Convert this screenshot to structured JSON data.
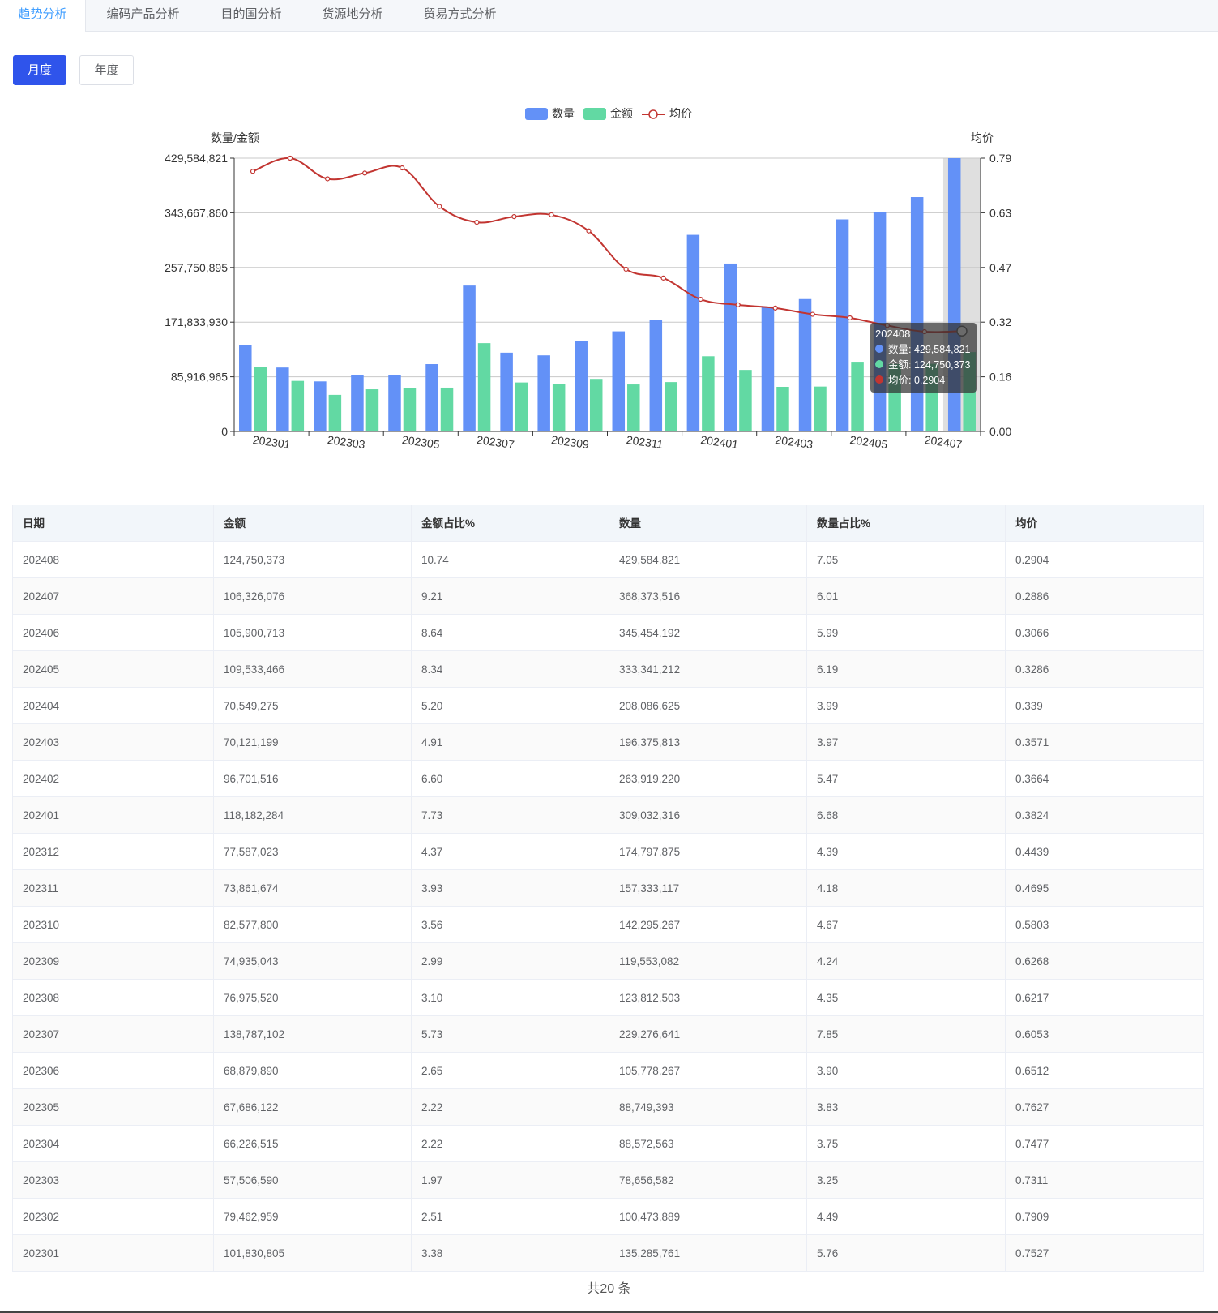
{
  "tabs": [
    {
      "label": "趋势分析",
      "active": true
    },
    {
      "label": "编码产品分析",
      "active": false
    },
    {
      "label": "目的国分析",
      "active": false
    },
    {
      "label": "货源地分析",
      "active": false
    },
    {
      "label": "贸易方式分析",
      "active": false
    }
  ],
  "period_buttons": {
    "monthly": "月度",
    "yearly": "年度",
    "selected": "月度"
  },
  "chart_data": {
    "type": "bar",
    "categories": [
      "202301",
      "202302",
      "202303",
      "202304",
      "202305",
      "202306",
      "202307",
      "202308",
      "202309",
      "202310",
      "202311",
      "202312",
      "202401",
      "202402",
      "202403",
      "202404",
      "202405",
      "202406",
      "202407",
      "202408"
    ],
    "x_tick_labels": [
      "202301",
      "202303",
      "202305",
      "202307",
      "202309",
      "202311",
      "202401",
      "202403",
      "202405",
      "202407"
    ],
    "series": [
      {
        "name": "数量",
        "kind": "bar",
        "color": "#6391f7",
        "values": [
          135285761,
          100473889,
          78656582,
          88572563,
          88749393,
          105778267,
          229276641,
          123812503,
          119553082,
          142295267,
          157333117,
          174797875,
          309032316,
          263919220,
          196375813,
          208086625,
          333341212,
          345454192,
          368373516,
          429584821
        ]
      },
      {
        "name": "金额",
        "kind": "bar",
        "color": "#62d9a3",
        "values": [
          101830805,
          79462959,
          57506590,
          66226515,
          67686122,
          68879890,
          138787102,
          76975520,
          74935043,
          82577800,
          73861674,
          77587023,
          118182284,
          96701516,
          70121199,
          70549275,
          109533466,
          105900713,
          106326076,
          124750373
        ]
      },
      {
        "name": "均价",
        "kind": "line",
        "color": "#c23531",
        "values": [
          0.7527,
          0.7909,
          0.7311,
          0.7477,
          0.7627,
          0.6512,
          0.6053,
          0.6217,
          0.6268,
          0.5803,
          0.4695,
          0.4439,
          0.3824,
          0.3664,
          0.3571,
          0.339,
          0.3286,
          0.3066,
          0.2886,
          0.2904
        ]
      }
    ],
    "y_left": {
      "label": "数量/金额",
      "ticks": [
        "0",
        "85,916,965",
        "171,833,930",
        "257,750,895",
        "343,667,860",
        "429,584,821"
      ],
      "max": 429584821
    },
    "y_right": {
      "label": "均价",
      "ticks": [
        "0.00",
        "0.16",
        "0.32",
        "0.47",
        "0.63",
        "0.79"
      ],
      "max": 0.7909
    },
    "legend_position": "top-center",
    "grid": true,
    "highlighted_category": "202408",
    "tooltip": {
      "title": "202408",
      "lines": [
        "数量: 429,584,821",
        "金额: 124,750,373",
        "均价: 0.2904"
      ]
    }
  },
  "table": {
    "headers": [
      "日期",
      "金额",
      "金额占比%",
      "数量",
      "数量占比%",
      "均价"
    ],
    "rows": [
      [
        "202408",
        "124,750,373",
        "10.74",
        "429,584,821",
        "7.05",
        "0.2904"
      ],
      [
        "202407",
        "106,326,076",
        "9.21",
        "368,373,516",
        "6.01",
        "0.2886"
      ],
      [
        "202406",
        "105,900,713",
        "8.64",
        "345,454,192",
        "5.99",
        "0.3066"
      ],
      [
        "202405",
        "109,533,466",
        "8.34",
        "333,341,212",
        "6.19",
        "0.3286"
      ],
      [
        "202404",
        "70,549,275",
        "5.20",
        "208,086,625",
        "3.99",
        "0.339"
      ],
      [
        "202403",
        "70,121,199",
        "4.91",
        "196,375,813",
        "3.97",
        "0.3571"
      ],
      [
        "202402",
        "96,701,516",
        "6.60",
        "263,919,220",
        "5.47",
        "0.3664"
      ],
      [
        "202401",
        "118,182,284",
        "7.73",
        "309,032,316",
        "6.68",
        "0.3824"
      ],
      [
        "202312",
        "77,587,023",
        "4.37",
        "174,797,875",
        "4.39",
        "0.4439"
      ],
      [
        "202311",
        "73,861,674",
        "3.93",
        "157,333,117",
        "4.18",
        "0.4695"
      ],
      [
        "202310",
        "82,577,800",
        "3.56",
        "142,295,267",
        "4.67",
        "0.5803"
      ],
      [
        "202309",
        "74,935,043",
        "2.99",
        "119,553,082",
        "4.24",
        "0.6268"
      ],
      [
        "202308",
        "76,975,520",
        "3.10",
        "123,812,503",
        "4.35",
        "0.6217"
      ],
      [
        "202307",
        "138,787,102",
        "5.73",
        "229,276,641",
        "7.85",
        "0.6053"
      ],
      [
        "202306",
        "68,879,890",
        "2.65",
        "105,778,267",
        "3.90",
        "0.6512"
      ],
      [
        "202305",
        "67,686,122",
        "2.22",
        "88,749,393",
        "3.83",
        "0.7627"
      ],
      [
        "202304",
        "66,226,515",
        "2.22",
        "88,572,563",
        "3.75",
        "0.7477"
      ],
      [
        "202303",
        "57,506,590",
        "1.97",
        "78,656,582",
        "3.25",
        "0.7311"
      ],
      [
        "202302",
        "79,462,959",
        "2.51",
        "100,473,889",
        "4.49",
        "0.7909"
      ],
      [
        "202301",
        "101,830,805",
        "3.38",
        "135,285,761",
        "5.76",
        "0.7527"
      ]
    ]
  },
  "footer": {
    "total_text": "共20 条"
  }
}
